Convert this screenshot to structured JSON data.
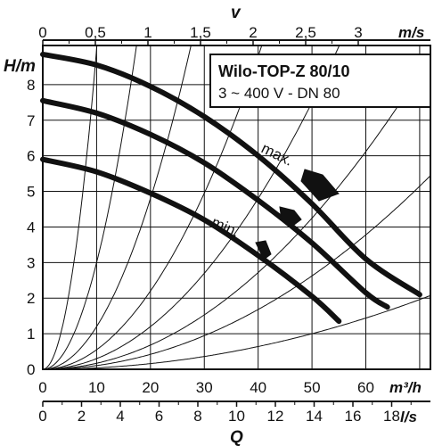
{
  "chart_data": {
    "type": "line",
    "title": "Wilo-TOP-Z 80/10",
    "subtitle": "3 ~ 400 V - DN 80",
    "x_axis_bottom": {
      "label": "Q",
      "scale_m3h": {
        "unit": "m³/h",
        "min": 0,
        "max": 72,
        "ticks": [
          0,
          10,
          20,
          30,
          40,
          50,
          60
        ]
      },
      "scale_ls": {
        "unit": "l/s",
        "ticks": [
          0,
          2,
          4,
          6,
          8,
          10,
          12,
          14,
          16,
          18
        ]
      }
    },
    "x_axis_top": {
      "label": "v",
      "unit": "m/s",
      "ticks": [
        "0",
        "0,5",
        "1",
        "1,5",
        "2",
        "2,5",
        "3"
      ],
      "tick_values": [
        0,
        0.5,
        1,
        1.5,
        2,
        2.5,
        3
      ]
    },
    "y_axis": {
      "label": "H/m",
      "min": 0,
      "max": 9.1,
      "ticks": [
        0,
        1,
        2,
        3,
        4,
        5,
        6,
        7,
        8
      ]
    },
    "grid": true,
    "series": [
      {
        "name": "max.",
        "x": [
          0,
          10,
          20,
          30,
          40,
          50,
          60,
          70
        ],
        "y": [
          8.85,
          8.55,
          7.95,
          7.1,
          6.0,
          4.65,
          3.1,
          2.1
        ]
      },
      {
        "name": "",
        "x": [
          0,
          10,
          20,
          30,
          40,
          50,
          60,
          64
        ],
        "y": [
          7.55,
          7.2,
          6.6,
          5.8,
          4.75,
          3.55,
          2.15,
          1.75
        ]
      },
      {
        "name": "min.",
        "x": [
          0,
          10,
          20,
          30,
          40,
          50,
          55
        ],
        "y": [
          5.9,
          5.55,
          4.95,
          4.2,
          3.2,
          2.05,
          1.35
        ]
      }
    ],
    "system_curves": {
      "k_values": [
        0.09,
        0.03,
        0.012,
        0.0055,
        0.003,
        0.0017,
        0.00105,
        0.0004
      ]
    },
    "speed_markers": [
      {
        "for": "max."
      },
      {
        "for": ""
      },
      {
        "for": "min."
      }
    ]
  }
}
